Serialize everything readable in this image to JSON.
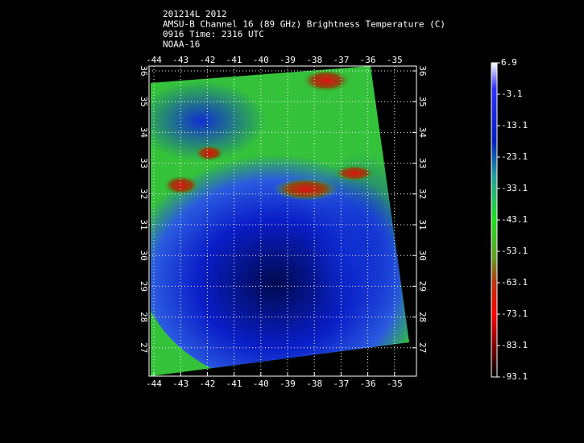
{
  "header": {
    "lines": [
      "201214L 2012",
      "AMSU-B Channel 16 (89 GHz) Brightness Temperature (C)",
      "0916 Time: 2316 UTC",
      "NOAA-16"
    ]
  },
  "map": {
    "lon_ticks": [
      -44,
      -43,
      -42,
      -41,
      -40,
      -39,
      -38,
      -37,
      -36,
      -35
    ],
    "lat_ticks": [
      36,
      35,
      34,
      33,
      32,
      31,
      30,
      29,
      28,
      27
    ]
  },
  "colorbar": {
    "labels": [
      6.9,
      -3.1,
      -13.1,
      -23.1,
      -33.1,
      -43.1,
      -53.1,
      -63.1,
      -73.1,
      -83.1,
      -93.1
    ]
  }
}
